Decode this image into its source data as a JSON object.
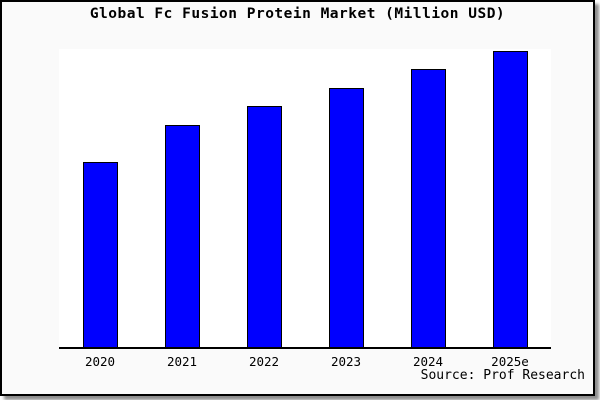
{
  "figure": {
    "title": "Global Fc Fusion Protein Market (Million USD)",
    "source": "Source: Prof Research",
    "colors": {
      "figure_background": "#FAFAFA",
      "plot_background": "#FFFFFF",
      "bar_fill": "#0000FF",
      "bar_edge": "#000000",
      "axis_line": "#000000",
      "text": "#000000",
      "border": "#000000"
    }
  },
  "chart_data": {
    "type": "bar",
    "title": "Global Fc Fusion Protein Market (Million USD)",
    "categories": [
      "2020",
      "2021",
      "2022",
      "2023",
      "2024",
      "2025e"
    ],
    "values": [
      2500,
      3000,
      3250,
      3500,
      3750,
      4000
    ],
    "xlabel": "",
    "ylabel": "",
    "ylim": [
      0,
      4025
    ],
    "grid": false,
    "legend": false,
    "source": "Source: Prof Research"
  }
}
